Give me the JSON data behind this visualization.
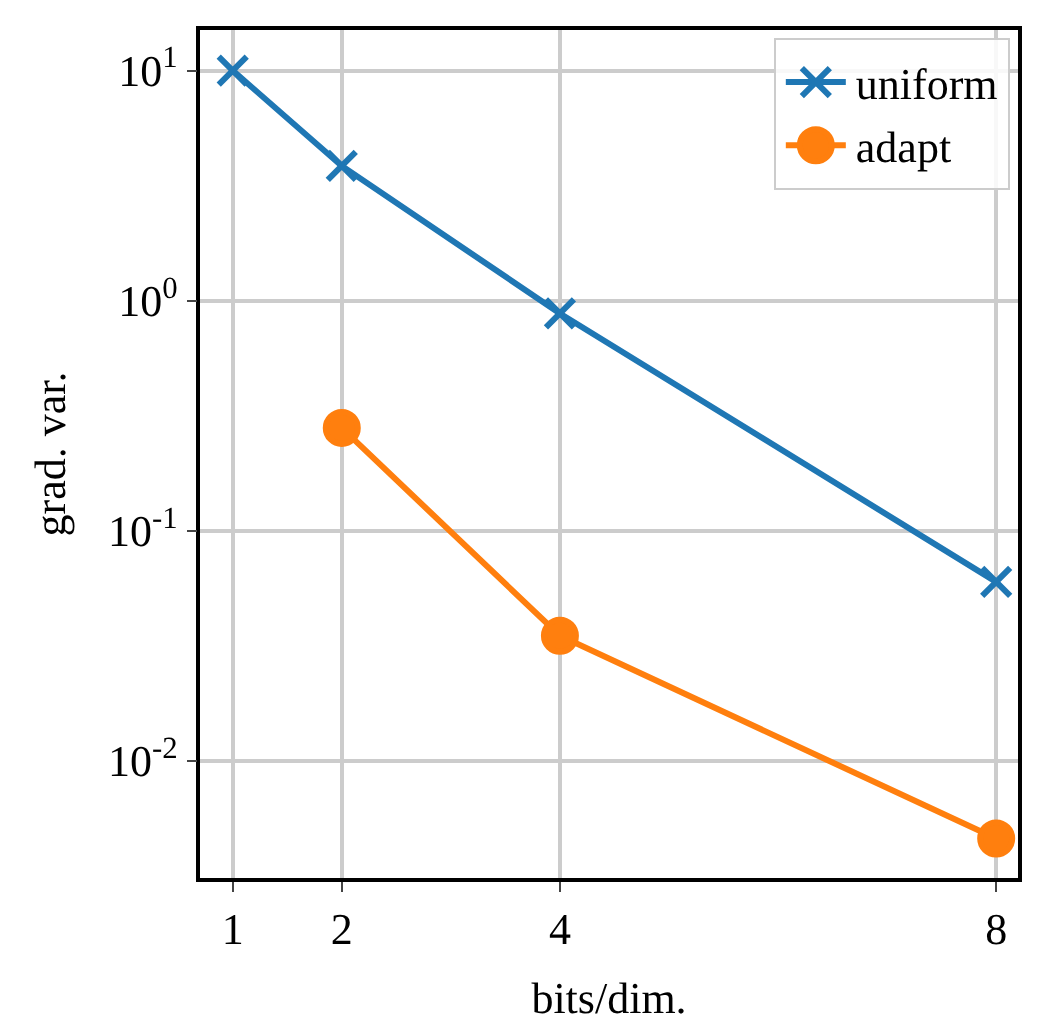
{
  "chart_data": {
    "type": "line",
    "xlabel": "bits/dim.",
    "ylabel": "grad. var.",
    "log": "y",
    "grid": true,
    "legend": "top right",
    "x": [
      1,
      2,
      4,
      8
    ],
    "series": [
      {
        "name": "uniform",
        "color": "#1f77b4",
        "marker": "cross",
        "values": [
          10,
          3.85,
          0.88,
          0.06
        ]
      },
      {
        "name": "adapt",
        "color": "#ff7f0e",
        "marker": "circle",
        "values": [
          null,
          0.28,
          0.035,
          0.0046
        ]
      }
    ],
    "xlim": [
      0.7,
      8.2
    ],
    "xticks": [
      1,
      2,
      4,
      8
    ],
    "ylim": [
      0.0031,
      15
    ],
    "yticks": [
      {
        "value": 10,
        "label": "10$^{1}$"
      },
      {
        "value": 1,
        "label": "10$^{0}$"
      },
      {
        "value": 0.1,
        "label": "10$^{-1}$"
      },
      {
        "value": 0.01,
        "label": "10$^{-2}$"
      }
    ]
  }
}
